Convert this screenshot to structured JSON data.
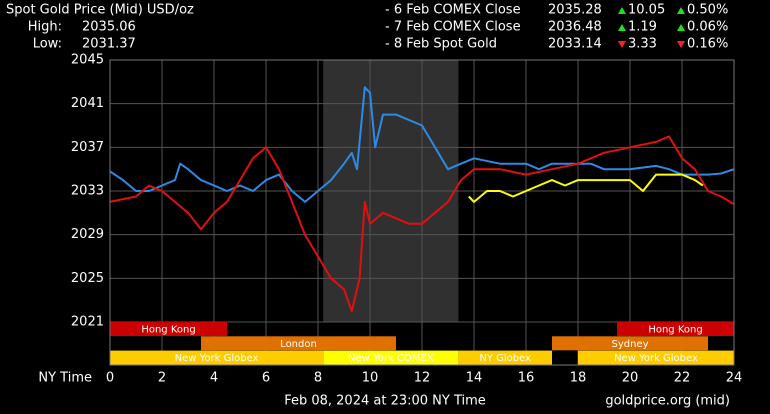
{
  "chart_data": {
    "type": "line",
    "title": "Spot Gold Price (Mid) USD/oz",
    "stats": [
      {
        "label": "High:",
        "value": "2035.06"
      },
      {
        "label": "Low:",
        "value": "2031.37"
      }
    ],
    "legend": [
      {
        "name": "- 6 Feb COMEX Close",
        "color": "#2d8ae6",
        "price": "2035.28",
        "change": "10.05",
        "change_pct": "0.50%",
        "direction": "up"
      },
      {
        "name": "- 7 Feb COMEX Close",
        "color": "#e01010",
        "price": "2036.48",
        "change": "1.19",
        "change_pct": "0.06%",
        "direction": "up"
      },
      {
        "name": "- 8 Feb Spot Gold",
        "color": "#ffff00",
        "price": "2033.14",
        "change": "3.33",
        "change_pct": "0.16%",
        "direction": "down"
      }
    ],
    "x_label": "NY Time",
    "xlim": [
      0,
      24
    ],
    "xticks": [
      0,
      2,
      4,
      6,
      8,
      10,
      12,
      14,
      16,
      18,
      20,
      22,
      24
    ],
    "ylim": [
      2021,
      2045
    ],
    "yticks": [
      2021,
      2025,
      2029,
      2033,
      2037,
      2041,
      2045
    ],
    "grid": true,
    "shade": [
      8.2,
      13.4
    ],
    "series": [
      {
        "name": "6 Feb COMEX Close",
        "color": "#2d8ae6",
        "x": [
          0,
          0.5,
          1,
          1.5,
          2,
          2.5,
          2.7,
          3,
          3.5,
          4,
          4.5,
          5,
          5.5,
          6,
          6.5,
          7,
          7.5,
          8,
          8.5,
          9,
          9.3,
          9.5,
          9.8,
          10,
          10.2,
          10.5,
          11,
          11.5,
          12,
          12.5,
          13,
          13.5,
          14,
          15,
          16,
          16.5,
          17,
          18,
          18.5,
          19,
          20,
          21,
          21.5,
          22,
          22.5,
          23,
          23.5,
          24
        ],
        "values": [
          2034.8,
          2034,
          2033,
          2033,
          2033.5,
          2034,
          2035.5,
          2035,
          2034,
          2033.5,
          2033,
          2033.5,
          2033,
          2034,
          2034.5,
          2033,
          2032,
          2033,
          2034,
          2035.5,
          2036.5,
          2035,
          2042.5,
          2042,
          2037,
          2040,
          2040,
          2039.5,
          2039,
          2037,
          2035,
          2035.5,
          2036,
          2035.5,
          2035.5,
          2035,
          2035.5,
          2035.5,
          2035.5,
          2035,
          2035,
          2035.3,
          2035,
          2034.5,
          2034.5,
          2034.5,
          2034.6,
          2035
        ]
      },
      {
        "name": "7 Feb COMEX Close",
        "color": "#e01010",
        "x": [
          0,
          1,
          1.5,
          2,
          2.5,
          3,
          3.5,
          4,
          4.5,
          5,
          5.5,
          6,
          6.5,
          7,
          7.5,
          8,
          8.5,
          9,
          9.3,
          9.6,
          9.8,
          10,
          10.5,
          11,
          11.5,
          12,
          12.5,
          13,
          13.5,
          14,
          15,
          16,
          17,
          18,
          18.5,
          19,
          20,
          21,
          21.5,
          22,
          22.5,
          23,
          23.5,
          24
        ],
        "values": [
          2032,
          2032.5,
          2033.5,
          2033,
          2032,
          2031,
          2029.5,
          2031,
          2032,
          2034,
          2036,
          2037,
          2035,
          2032,
          2029,
          2027,
          2025,
          2024,
          2022,
          2025,
          2032,
          2030,
          2031,
          2030.5,
          2030,
          2030,
          2031,
          2032,
          2034,
          2035,
          2035,
          2034.5,
          2035,
          2035.5,
          2036,
          2036.5,
          2037,
          2037.5,
          2038,
          2036,
          2035,
          2033,
          2032.5,
          2031.8
        ]
      },
      {
        "name": "8 Feb Spot Gold",
        "color": "#ffff00",
        "x": [
          13.8,
          14,
          14.5,
          15,
          15.5,
          16,
          16.5,
          17,
          17.5,
          18,
          18.5,
          19,
          20,
          20.5,
          21,
          21.5,
          22,
          22.5,
          22.8
        ],
        "values": [
          2032.5,
          2032,
          2033,
          2033,
          2032.5,
          2033,
          2033.5,
          2034,
          2033.5,
          2034,
          2034,
          2034,
          2034,
          2033,
          2034.5,
          2034.5,
          2034.5,
          2034,
          2033.5
        ]
      }
    ],
    "sessions": [
      {
        "label": "Hong Kong",
        "start": 0,
        "end": 4.5,
        "row": 0,
        "color": "#cc0000"
      },
      {
        "label": "Hong Kong",
        "start": 19.5,
        "end": 24,
        "row": 0,
        "color": "#cc0000"
      },
      {
        "label": "London",
        "start": 3.5,
        "end": 11,
        "row": 1,
        "color": "#e07000"
      },
      {
        "label": "Sydney",
        "start": 17,
        "end": 23,
        "row": 1,
        "color": "#e07000"
      },
      {
        "label": "New York Globex",
        "start": 0,
        "end": 8.2,
        "row": 2,
        "color": "#ffcc00"
      },
      {
        "label": "New York COMEX",
        "start": 8.2,
        "end": 13.4,
        "row": 2,
        "color": "#ffff00"
      },
      {
        "label": "NY Globex",
        "start": 13.4,
        "end": 17,
        "row": 2,
        "color": "#ffcc00"
      },
      {
        "label": "New York Globex",
        "start": 18,
        "end": 24,
        "row": 2,
        "color": "#ffcc00"
      }
    ],
    "footer": "Feb 08, 2024 at 23:00 NY Time",
    "source": "goldprice.org (mid)"
  }
}
